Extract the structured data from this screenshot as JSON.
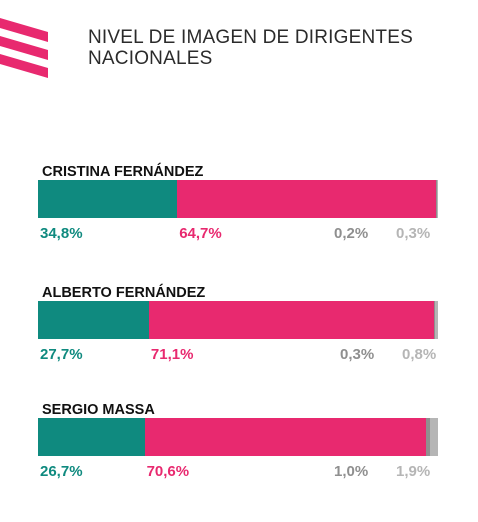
{
  "title_lines": [
    "NIVEL DE IMAGEN DE DIRIGENTES",
    "NACIONALES"
  ],
  "colors": {
    "positive": "#0f8a7f",
    "negative": "#e8296f",
    "neutral": "#8f8f8f",
    "nsnc": "#b5b5b5",
    "title": "#2b2b2b"
  },
  "chart_data": {
    "type": "bar",
    "orientation": "horizontal-stacked",
    "categories": [
      "CRISTINA FERNÁNDEZ",
      "ALBERTO FERNÁNDEZ",
      "SERGIO MASSA"
    ],
    "xlim": [
      0,
      100
    ],
    "grid": false,
    "series": [
      {
        "values": [
          34.8,
          27.7,
          26.7
        ],
        "labels": [
          "34,8%",
          "27,7%",
          "26,7%"
        ]
      },
      {
        "values": [
          64.7,
          71.1,
          70.6
        ],
        "labels": [
          "64,7%",
          "71,1%",
          "70,6%"
        ]
      },
      {
        "values": [
          0.2,
          0.3,
          1.0
        ],
        "labels": [
          "0,2%",
          "0,3%",
          "1,0%"
        ]
      },
      {
        "values": [
          0.3,
          0.8,
          1.9
        ],
        "labels": [
          "0,3%",
          "0,8%",
          "1,9%"
        ]
      }
    ]
  }
}
